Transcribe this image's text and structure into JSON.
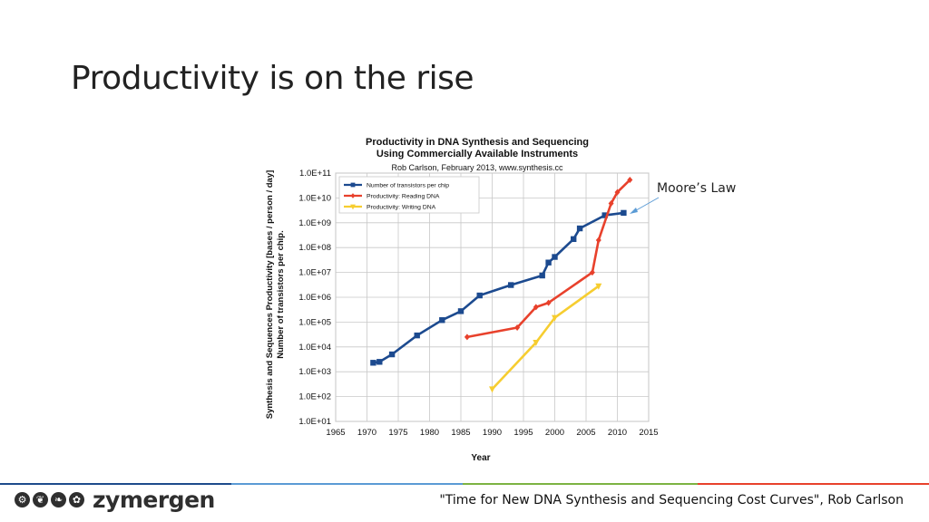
{
  "slide": {
    "title": "Productivity is on the rise",
    "callout": "Moore’s Law",
    "citation": "\"Time for New DNA Synthesis and Sequencing Cost Curves\", Rob Carlson",
    "brand": "zymergen",
    "logo_icons": [
      "gear-icon",
      "leaf-icon",
      "leaf-icon",
      "gear-icon"
    ],
    "footer_colors": [
      "#1e4a8c",
      "#5b9bd5",
      "#7cb342",
      "#e8412c"
    ]
  },
  "chart_data": {
    "type": "line",
    "title_line1": "Productivity in DNA Synthesis and Sequencing",
    "title_line2": "Using Commercially Available Instruments",
    "subtitle": "Rob Carlson, February 2013, www.synthesis.cc",
    "xlabel": "Year",
    "ylabel_line1": "Synthesis and Sequences Productivity [bases / person / day]",
    "ylabel_line2": "Number of transistors per chip.",
    "xlim": [
      1965,
      2015
    ],
    "x_ticks": [
      "1965",
      "1970",
      "1975",
      "1980",
      "1985",
      "1990",
      "1995",
      "2000",
      "2005",
      "2010",
      "2015"
    ],
    "y_log": true,
    "ylim_exp": [
      1,
      11
    ],
    "y_ticks": [
      "1.0E+01",
      "1.0E+02",
      "1.0E+03",
      "1.0E+04",
      "1.0E+05",
      "1.0E+06",
      "1.0E+07",
      "1.0E+08",
      "1.0E+09",
      "1.0E+10",
      "1.0E+11"
    ],
    "grid": true,
    "legend_position": "top-left",
    "series": [
      {
        "name": "Number of transistors per chip",
        "color": "#1c4a8f",
        "marker": "square",
        "points": [
          [
            1971,
            2300
          ],
          [
            1972,
            2500
          ],
          [
            1974,
            5000
          ],
          [
            1978,
            29000
          ],
          [
            1982,
            120000
          ],
          [
            1985,
            275000
          ],
          [
            1988,
            1180000
          ],
          [
            1993,
            3100000
          ],
          [
            1998,
            7500000
          ],
          [
            1999,
            25000000
          ],
          [
            2000,
            42000000
          ],
          [
            2003,
            220000000
          ],
          [
            2004,
            592000000
          ],
          [
            2008,
            2000000000
          ],
          [
            2011,
            2500000000
          ]
        ]
      },
      {
        "name": "Productivity: Reading DNA",
        "color": "#e8412c",
        "marker": "diamond",
        "points": [
          [
            1986,
            25000
          ],
          [
            1994,
            60000
          ],
          [
            1997,
            400000
          ],
          [
            1999,
            600000
          ],
          [
            2006,
            10000000
          ],
          [
            2007,
            200000000
          ],
          [
            2009,
            6000000000
          ],
          [
            2010,
            17000000000
          ],
          [
            2012,
            53000000000
          ]
        ]
      },
      {
        "name": "Productivity: Writing DNA",
        "color": "#f6cd30",
        "marker": "triangle",
        "points": [
          [
            1990,
            200
          ],
          [
            1997,
            15000
          ],
          [
            2000,
            150000
          ],
          [
            2007,
            2800000
          ]
        ]
      }
    ]
  }
}
